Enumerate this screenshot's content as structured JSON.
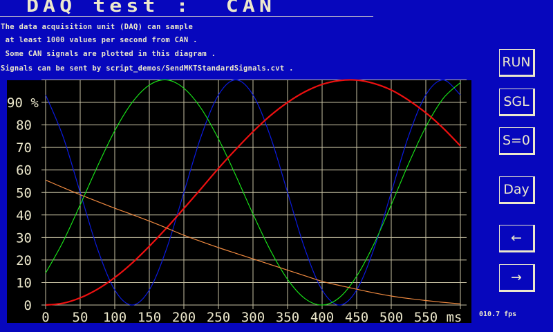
{
  "header": {
    "title": "DAQ test :  CAN"
  },
  "info_lines": [
    "The data acquisition unit (DAQ) can sample",
    " at least 1000 values per second from CAN .",
    " Some CAN signals are plotted in this diagram .",
    "Signals can be sent by script_demos/SendMKTStandardSignals.cvt ."
  ],
  "buttons": {
    "run": "RUN",
    "single": "SGL",
    "set_zero": "S=0",
    "day": "Day",
    "scroll_left": "←",
    "scroll_right": "→"
  },
  "status": {
    "fps": "010.7 fps"
  },
  "colors": {
    "background": "#0707bd",
    "foreground": "#ece8cc",
    "plot_background": "#000000",
    "grid": "#c8c2a4"
  },
  "chart_data": {
    "type": "line",
    "xlabel": "ms",
    "ylabel": "%",
    "xlim": [
      0,
      610
    ],
    "ylim": [
      0,
      100
    ],
    "grid": true,
    "x_ticks": [
      "0",
      "50",
      "100",
      "150",
      "200",
      "250",
      "300",
      "350",
      "400",
      "450",
      "500",
      "550"
    ],
    "y_ticks": [
      "0",
      "10",
      "20",
      "30",
      "40",
      "50",
      "60",
      "70",
      "80",
      "90 %"
    ],
    "x": [
      0,
      25,
      50,
      75,
      100,
      125,
      150,
      175,
      200,
      225,
      250,
      275,
      300,
      325,
      350,
      375,
      400,
      425,
      450,
      475,
      500,
      525,
      550,
      575,
      600
    ],
    "series": [
      {
        "color": "#0a1ae0",
        "values": [
          93.3,
          75,
          50,
          25,
          6.7,
          0,
          6.7,
          25,
          50,
          75,
          93.3,
          100,
          93.3,
          75,
          50,
          25,
          6.7,
          0,
          6.7,
          25,
          50,
          75,
          93.3,
          100,
          93.3
        ]
      },
      {
        "color": "#18e018",
        "values": [
          14.2,
          28.0,
          44.5,
          61.6,
          77.4,
          89.9,
          97.7,
          100,
          96.3,
          87.3,
          73.8,
          57.6,
          40.4,
          24.4,
          11.4,
          2.9,
          0,
          3.3,
          12.8,
          27.1,
          44.5,
          62.7,
          79.1,
          91.7,
          98.8
        ]
      },
      {
        "color": "#ee1010",
        "values": [
          0,
          0.8,
          3.2,
          7.0,
          12.2,
          18.6,
          26.1,
          34.2,
          42.9,
          51.7,
          60.7,
          69.1,
          77.0,
          84.1,
          90.0,
          94.7,
          98.0,
          99.7,
          99.9,
          98.4,
          95.5,
          91.0,
          85.4,
          78.6,
          70.7
        ]
      },
      {
        "color": "#f08a40",
        "values": [
          55.5,
          52.2,
          49,
          46,
          43,
          40.2,
          37.3,
          34.2,
          31,
          28.2,
          25.5,
          23,
          20.5,
          18,
          15.5,
          13,
          10.5,
          8.7,
          7,
          5.4,
          4,
          2.9,
          2,
          1.2,
          0.5
        ]
      }
    ]
  }
}
